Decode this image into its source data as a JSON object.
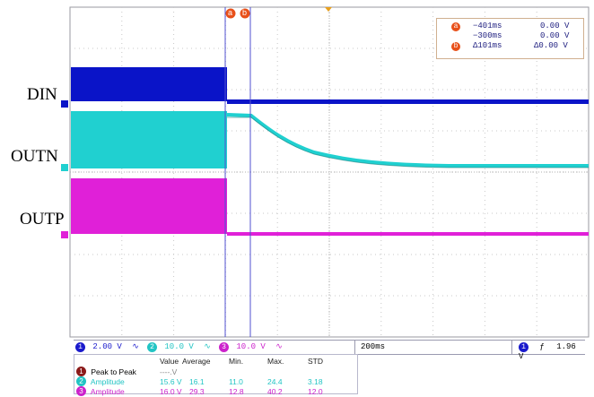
{
  "signals": {
    "din_label": "DIN",
    "outn_label": "OUTN",
    "outp_label": "OUTP"
  },
  "cursors": {
    "a_label": "a",
    "b_label": "b",
    "a_time": "−401ms",
    "a_volt": "0.00 V",
    "b_time": "−300ms",
    "b_volt": "0.00 V",
    "delta_time": "Δ101ms",
    "delta_volt": "Δ0.00 V"
  },
  "channels": [
    {
      "num": "1",
      "scale": "2.00 V",
      "color": "#1a1acc"
    },
    {
      "num": "2",
      "scale": "10.0 V",
      "color": "#22c4c4"
    },
    {
      "num": "3",
      "scale": "10.0 V",
      "color": "#cc22cc"
    }
  ],
  "timebase": "200ms",
  "trigger": {
    "channel": "1",
    "slope": "ƒ",
    "level": "1.96 V"
  },
  "measurements": {
    "headers": [
      "Value",
      "Average",
      "Min.",
      "Max.",
      "STD"
    ],
    "rows": [
      {
        "ch": "1",
        "name": "Peak to Peak",
        "value": "----.V",
        "average": "",
        "min": "",
        "max": "",
        "std": "",
        "color": "#1a1acc"
      },
      {
        "ch": "2",
        "name": "Amplitude",
        "value": "15.6 V",
        "average": "16.1",
        "min": "11.0",
        "max": "24.4",
        "std": "3.18",
        "color": "#22c4c4"
      },
      {
        "ch": "3",
        "name": "Amplitude",
        "value": "16.0 V",
        "average": "29.3",
        "min": "12.8",
        "max": "40.2",
        "std": "12.0",
        "color": "#cc22cc"
      }
    ]
  },
  "colors": {
    "ch1": "#0a14c8",
    "ch2": "#20d0d0",
    "ch3": "#e020d8",
    "cursor": "#5050d0",
    "grid": "#c0c0c0",
    "trigger_marker": "#e8a020"
  }
}
